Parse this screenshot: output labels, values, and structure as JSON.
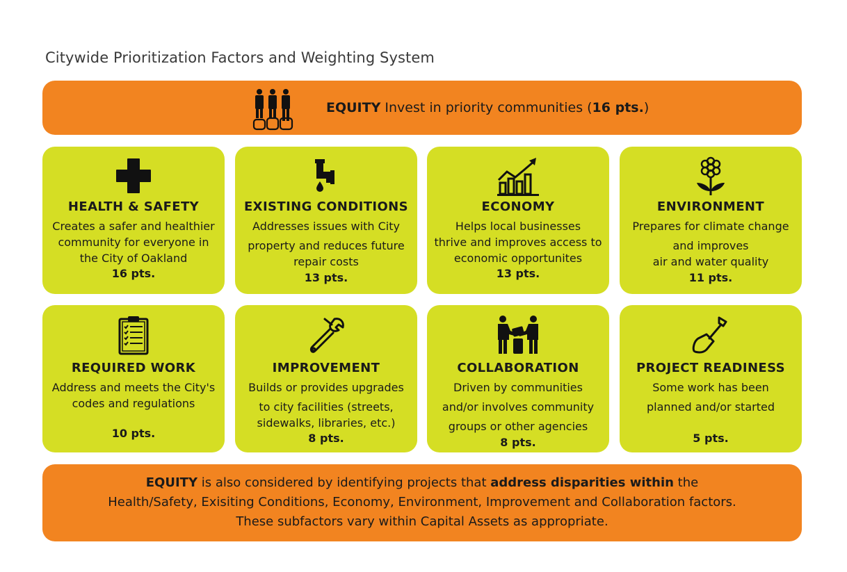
{
  "page_title": "Citywide Prioritization Factors and Weighting System",
  "equity_banner": {
    "icon": "people-group-icon",
    "label": "EQUITY",
    "text": " Invest in priority communities (",
    "points": "16 pts.",
    "close": ")"
  },
  "cards": [
    {
      "icon": "medical-cross-icon",
      "title": "HEALTH & SAFETY",
      "desc": [
        "Creates a safer and healthier",
        "community for everyone in",
        "the City of Oakland"
      ],
      "points": "16 pts."
    },
    {
      "icon": "leaking-pipe-icon",
      "title": "EXISTING CONDITIONS",
      "desc": [
        "Addresses issues with City",
        "property and reduces future",
        "repair costs"
      ],
      "points": "13 pts."
    },
    {
      "icon": "growth-chart-icon",
      "title": "ECONOMY",
      "desc": [
        "Helps local businesses",
        "thrive and improves access to",
        "economic opportunites"
      ],
      "points": "13 pts."
    },
    {
      "icon": "flower-icon",
      "title": "ENVIRONMENT",
      "desc": [
        "Prepares for climate change",
        "and improves",
        "air and water quality"
      ],
      "points": "11 pts."
    },
    {
      "icon": "clipboard-checklist-icon",
      "title": "REQUIRED WORK",
      "desc": [
        "Address and meets the City's",
        "codes and regulations"
      ],
      "points": "10 pts."
    },
    {
      "icon": "wrench-icon",
      "title": "IMPROVEMENT",
      "desc": [
        "Builds or provides upgrades",
        "to city facilities (streets,",
        "sidewalks, libraries, etc.)"
      ],
      "points": "8 pts."
    },
    {
      "icon": "collaboration-people-icon",
      "title": "COLLABORATION",
      "desc": [
        "Driven by communities",
        "and/or involves community",
        "groups or other agencies"
      ],
      "points": "8 pts."
    },
    {
      "icon": "shovel-icon",
      "title": "PROJECT READINESS",
      "desc": [
        "Some work has been",
        "planned and/or started"
      ],
      "points": "5 pts."
    }
  ],
  "footer_banner": {
    "line1_label": "EQUITY",
    "line1_text": " is also considered by identifying projects that ",
    "line1_bold": "address disparities within",
    "line1_end": " the",
    "line2": "Health/Safety, Exisiting Conditions, Economy, Environment, Improvement and Collaboration factors.",
    "line3": "These subfactors vary within Capital Assets as appropriate."
  },
  "colors": {
    "orange": "#f28420",
    "lime": "#d5de24",
    "text": "#1a1a1a"
  }
}
